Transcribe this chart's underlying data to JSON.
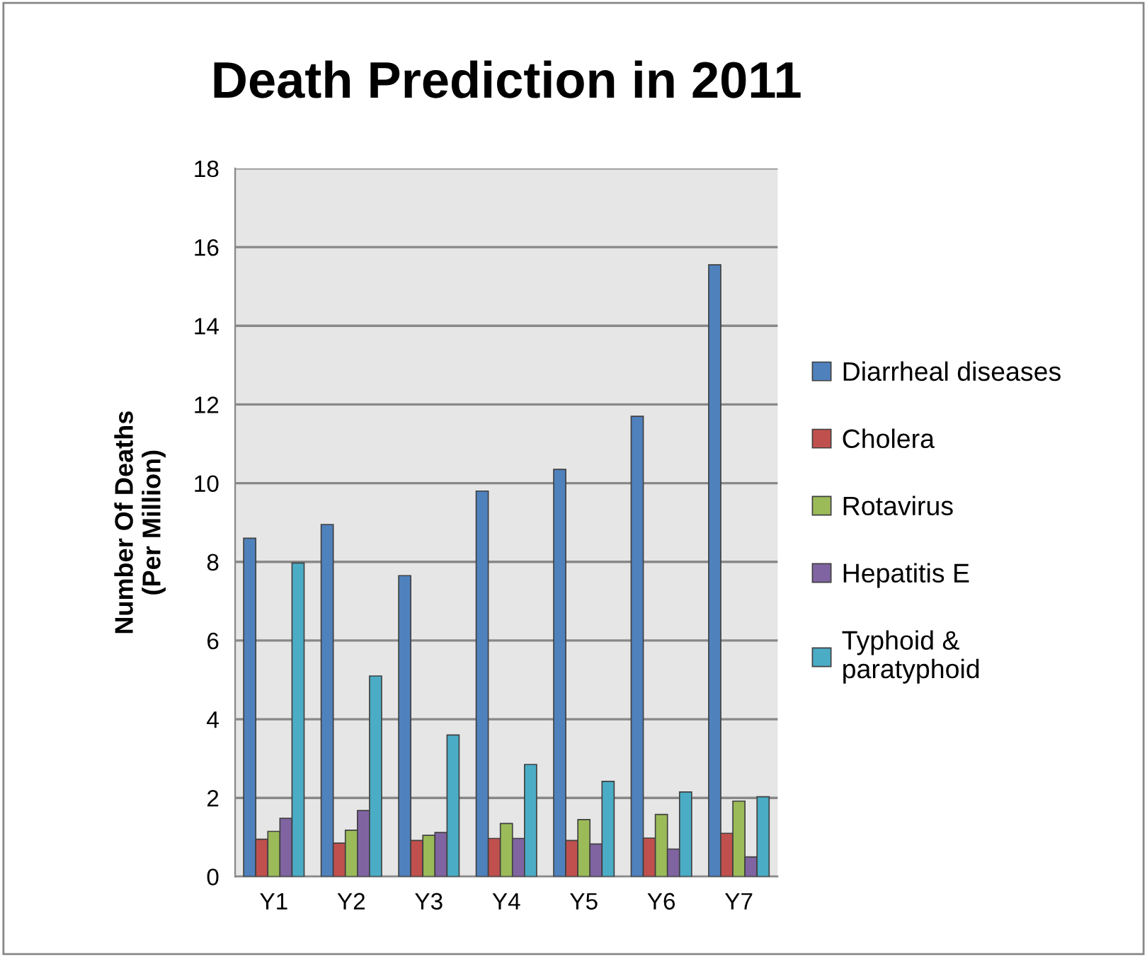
{
  "chart_data": {
    "type": "bar",
    "title": "Death Prediction in 2011",
    "ylabel": "Number Of Deaths\n(Per Million)",
    "categories": [
      "Y1",
      "Y2",
      "Y3",
      "Y4",
      "Y5",
      "Y6",
      "Y7"
    ],
    "series": [
      {
        "name": "Diarrheal diseases",
        "color": "#4f81bd",
        "values": [
          8.6,
          8.95,
          7.65,
          9.8,
          10.35,
          11.7,
          15.55
        ]
      },
      {
        "name": "Cholera",
        "color": "#c0504d",
        "values": [
          0.95,
          0.85,
          0.92,
          0.97,
          0.92,
          0.98,
          1.1
        ]
      },
      {
        "name": "Rotavirus",
        "color": "#9bbb59",
        "values": [
          1.15,
          1.18,
          1.05,
          1.35,
          1.45,
          1.58,
          1.92
        ]
      },
      {
        "name": "Hepatitis E",
        "color": "#8064a2",
        "values": [
          1.48,
          1.68,
          1.12,
          0.97,
          0.83,
          0.7,
          0.5
        ]
      },
      {
        "name": "Typhoid &\nparatyphoid",
        "color": "#4bacc6",
        "values": [
          7.97,
          5.1,
          3.6,
          2.85,
          2.42,
          2.15,
          2.03
        ]
      }
    ],
    "ylim": [
      0,
      18
    ],
    "yticks": [
      0,
      2,
      4,
      6,
      8,
      10,
      12,
      14,
      16,
      18
    ],
    "grid": "y",
    "legend": "right"
  }
}
